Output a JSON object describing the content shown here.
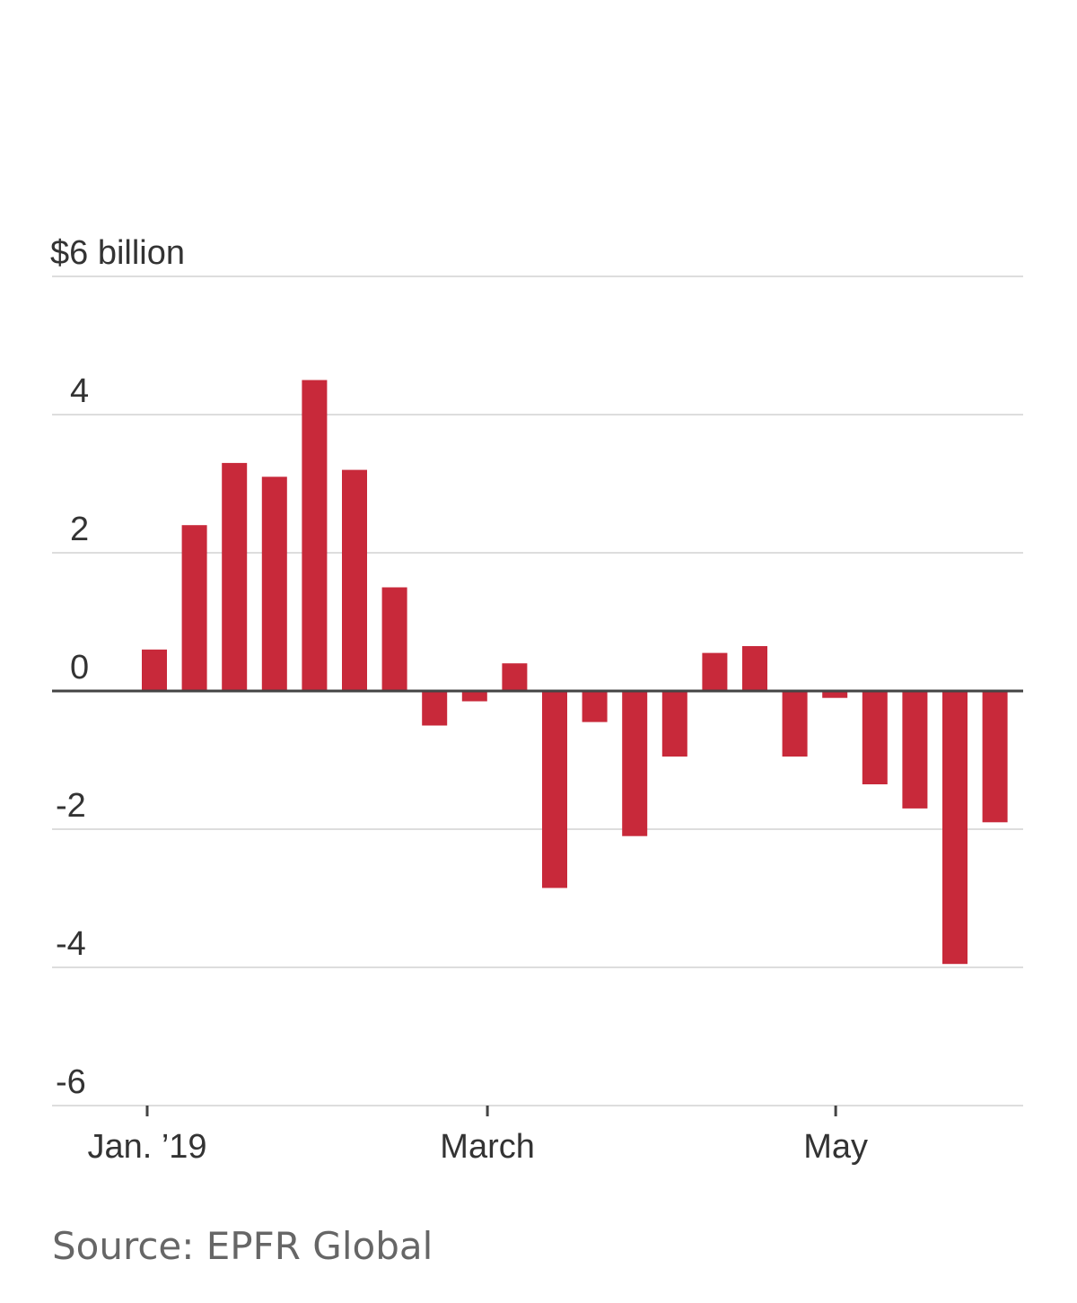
{
  "chart_data": {
    "type": "bar",
    "title": "",
    "xlabel": "",
    "ylabel": "",
    "ylim": [
      -6,
      6
    ],
    "yticks": [
      {
        "value": 6,
        "label": "$6 billion"
      },
      {
        "value": 4,
        "label": "4"
      },
      {
        "value": 2,
        "label": "2"
      },
      {
        "value": 0,
        "label": "0"
      },
      {
        "value": -2,
        "label": "-2"
      },
      {
        "value": -4,
        "label": "-4"
      },
      {
        "value": -6,
        "label": "-6"
      }
    ],
    "xticks": [
      {
        "index": 0,
        "label": "Jan. ’19"
      },
      {
        "index": 8.5,
        "label": "March"
      },
      {
        "index": 17.2,
        "label": "May"
      }
    ],
    "values": [
      0.6,
      2.4,
      3.3,
      3.1,
      4.5,
      3.2,
      1.5,
      -0.5,
      -0.15,
      0.4,
      -2.85,
      -0.45,
      -2.1,
      -0.95,
      0.55,
      0.65,
      -0.95,
      -0.1,
      -1.35,
      -1.7,
      -3.95,
      -1.9
    ],
    "bar_color": "#c8293a",
    "grid_color": "#dddddd",
    "zero_line_color": "#444444"
  },
  "source": "Source: EPFR Global"
}
